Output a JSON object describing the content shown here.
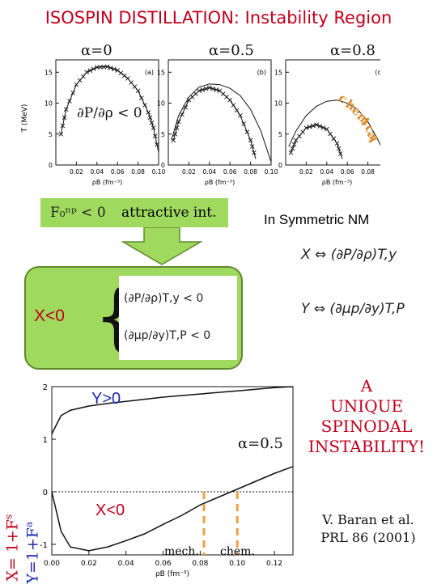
{
  "title": "ISOSPIN DISTILLATION: Instability Region",
  "top_panels": [
    {
      "alpha_label": "α=0",
      "panel_tag": "(a)"
    },
    {
      "alpha_label": "α=0.5",
      "panel_tag": "(b)"
    },
    {
      "alpha_label": "α=0.8",
      "panel_tag": "(c)"
    }
  ],
  "top_axes": {
    "ylabel": "T (MeV)",
    "xlabel": "ρB (fm⁻³)",
    "y_ticks": [
      "0",
      "5",
      "10",
      "15"
    ],
    "x_ticks": [
      "0.02",
      "0.04",
      "0.06",
      "0.08",
      "0.10"
    ]
  },
  "panel_a_condition": "∂P/∂ρ < 0",
  "chemical_label": "chemical",
  "landau_box": {
    "parameter": "F₀ⁿᵖ < 0",
    "text": "attractive   int."
  },
  "symmetric_nm": "In Symmetric NM",
  "definitions": {
    "x_def": "X ⇔ (∂P/∂ρ)T,y",
    "y_def": "Y ⇔ (∂μp/∂y)T,P"
  },
  "condition_box": {
    "label": "X<0",
    "line1": "(∂P/∂ρ)T,y < 0",
    "line2": "(∂μp/∂y)T,P < 0"
  },
  "bottom_chart": {
    "y_label": "Y>0",
    "x_label": "X<0",
    "alpha_label": "α=0.5",
    "mech_label": "mech.",
    "chem_label": "chem.",
    "left_axis_x": "X= 1+F",
    "left_axis_x_sup": "s",
    "left_axis_y": "Y=1+F",
    "left_axis_y_sup": "a",
    "x_ticks": [
      "0.00",
      "0.02",
      "0.04",
      "0.06",
      "0.08",
      "0.10",
      "0.12"
    ],
    "y_ticks": [
      "-1",
      "0",
      "1",
      "2"
    ],
    "xlabel": "ρB (fm⁻³)",
    "colors": {
      "dashed_markers": "#f0a040",
      "curves": "#111111"
    }
  },
  "message": [
    "A",
    "UNIQUE",
    "SPINODAL",
    "INSTABILITY!"
  ],
  "reference": [
    "V. Baran et al.",
    "PRL 86 (2001)"
  ],
  "chart_data": [
    {
      "type": "line",
      "title": "ISOSPIN DISTILLATION: Instability Region",
      "xlabel": "ρB (fm⁻³)",
      "ylabel": "T (MeV)",
      "panels": [
        {
          "tag": "(a)",
          "alpha": 0,
          "series": [
            {
              "x": [
                0.005,
                0.01,
                0.02,
                0.03,
                0.04,
                0.05,
                0.06,
                0.07,
                0.08,
                0.09,
                0.095,
                0.1
              ],
              "y": [
                5,
                9,
                13,
                15,
                15.8,
                15.9,
                15.3,
                14,
                12,
                8.5,
                6,
                2
              ]
            }
          ]
        },
        {
          "tag": "(b)",
          "alpha": 0.5,
          "series": [
            {
              "name": "mechanical",
              "x": [
                0.005,
                0.01,
                0.02,
                0.03,
                0.04,
                0.05,
                0.06,
                0.07,
                0.08,
                0.085
              ],
              "y": [
                4,
                7,
                10.5,
                12,
                12.5,
                12,
                10.5,
                8,
                4,
                1
              ]
            },
            {
              "name": "chemical",
              "x": [
                0.003,
                0.01,
                0.02,
                0.03,
                0.04,
                0.05,
                0.06,
                0.07,
                0.08,
                0.09,
                0.1
              ],
              "y": [
                4,
                8,
                11,
                12.6,
                13.1,
                13,
                12.4,
                11.2,
                9,
                5.5,
                0.5
              ]
            }
          ]
        },
        {
          "tag": "(c)",
          "alpha": 0.8,
          "series": [
            {
              "name": "mechanical",
              "x": [
                0.005,
                0.01,
                0.02,
                0.03,
                0.04,
                0.05,
                0.055
              ],
              "y": [
                2,
                4,
                6,
                6.5,
                5.8,
                3.5,
                1
              ]
            },
            {
              "name": "chemical",
              "x": [
                0.003,
                0.01,
                0.02,
                0.03,
                0.04,
                0.05,
                0.06,
                0.07,
                0.08,
                0.09,
                0.1
              ],
              "y": [
                3,
                5.5,
                8,
                9.5,
                10.3,
                10.5,
                10,
                9,
                7,
                4,
                0.5
              ]
            }
          ]
        }
      ],
      "xlim": [
        0,
        0.1
      ],
      "ylim": [
        0,
        17
      ]
    },
    {
      "type": "line",
      "xlabel": "ρB (fm⁻³)",
      "x": [
        0.0,
        0.005,
        0.01,
        0.02,
        0.03,
        0.04,
        0.05,
        0.06,
        0.07,
        0.08,
        0.09,
        0.1,
        0.11,
        0.12,
        0.13
      ],
      "series": [
        {
          "name": "Y",
          "values": [
            1.1,
            1.45,
            1.55,
            1.63,
            1.68,
            1.72,
            1.76,
            1.8,
            1.83,
            1.86,
            1.89,
            1.92,
            1.95,
            1.98,
            2.0
          ]
        },
        {
          "name": "X",
          "values": [
            0.0,
            -0.75,
            -1.05,
            -1.12,
            -1.05,
            -0.93,
            -0.8,
            -0.62,
            -0.45,
            -0.25,
            -0.1,
            0.05,
            0.2,
            0.35,
            0.48
          ]
        }
      ],
      "reference_line": 0,
      "markers": [
        0.082,
        0.1
      ],
      "xlim": [
        0,
        0.13
      ],
      "ylim": [
        -1.2,
        2.0
      ]
    }
  ]
}
